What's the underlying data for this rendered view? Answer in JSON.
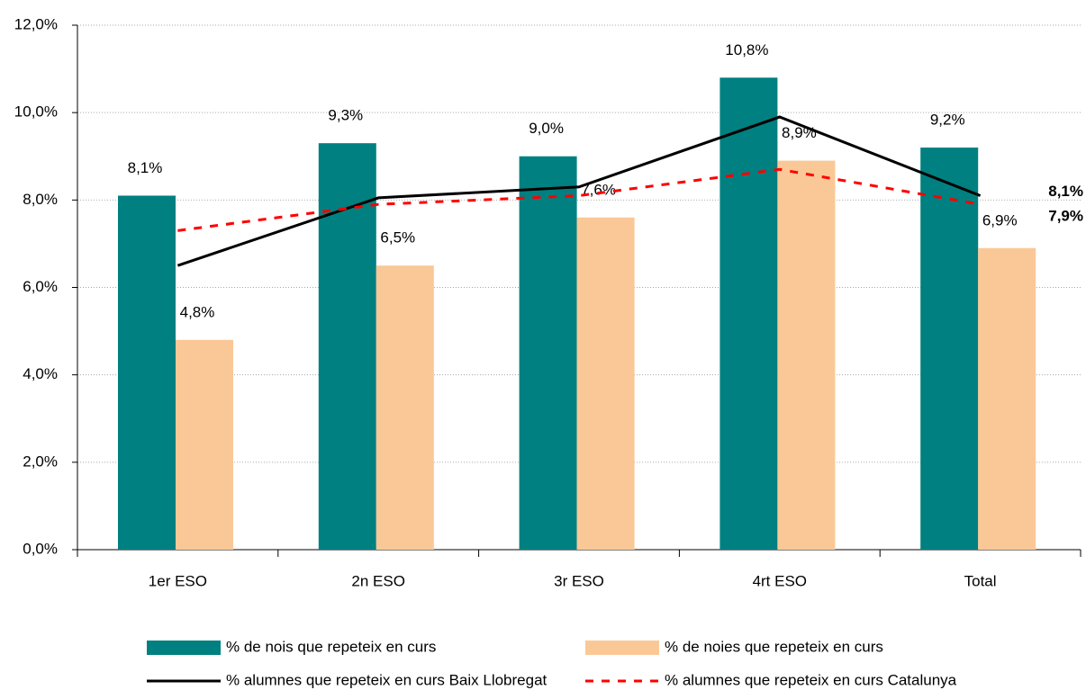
{
  "chart_data": {
    "type": "bar",
    "categories": [
      "1er  ESO",
      "2n ESO",
      "3r ESO",
      "4rt ESO",
      "Total"
    ],
    "series": [
      {
        "name": "% de nois que repeteix en curs",
        "type": "bar",
        "color": "#008080",
        "values": [
          8.1,
          9.3,
          9.0,
          10.8,
          9.2
        ],
        "value_labels": [
          "8,1%",
          "9,3%",
          "9,0%",
          "10,8%",
          "9,2%"
        ]
      },
      {
        "name": "% de noies que repeteix en curs",
        "type": "bar",
        "color": "#fac896",
        "values": [
          4.8,
          6.5,
          7.6,
          8.9,
          6.9
        ],
        "value_labels": [
          "4,8%",
          "6,5%",
          "7,6%",
          "8,9%",
          "6,9%"
        ]
      },
      {
        "name": "% alumnes que repeteix en curs Baix  Llobregat",
        "type": "line",
        "color": "#000000",
        "values": [
          6.5,
          8.05,
          8.3,
          9.9,
          8.1
        ],
        "value_labels": [
          null,
          null,
          null,
          null,
          "8,1%"
        ]
      },
      {
        "name": "% alumnes que repeteix en curs Catalunya",
        "type": "line",
        "color": "#ff0000",
        "dashed": true,
        "values": [
          7.3,
          7.9,
          8.1,
          8.7,
          7.9
        ],
        "value_labels": [
          null,
          null,
          null,
          null,
          "7,9%"
        ]
      }
    ],
    "ylim": [
      0,
      12
    ],
    "yticks": [
      {
        "value": 0,
        "label": "0,0%"
      },
      {
        "value": 2,
        "label": "2,0%"
      },
      {
        "value": 4,
        "label": "4,0%"
      },
      {
        "value": 6,
        "label": "6,0%"
      },
      {
        "value": 8,
        "label": "8,0%"
      },
      {
        "value": 10,
        "label": "10,0%"
      },
      {
        "value": 12,
        "label": "12,0%"
      }
    ],
    "grid": true,
    "legend": "bottom"
  }
}
